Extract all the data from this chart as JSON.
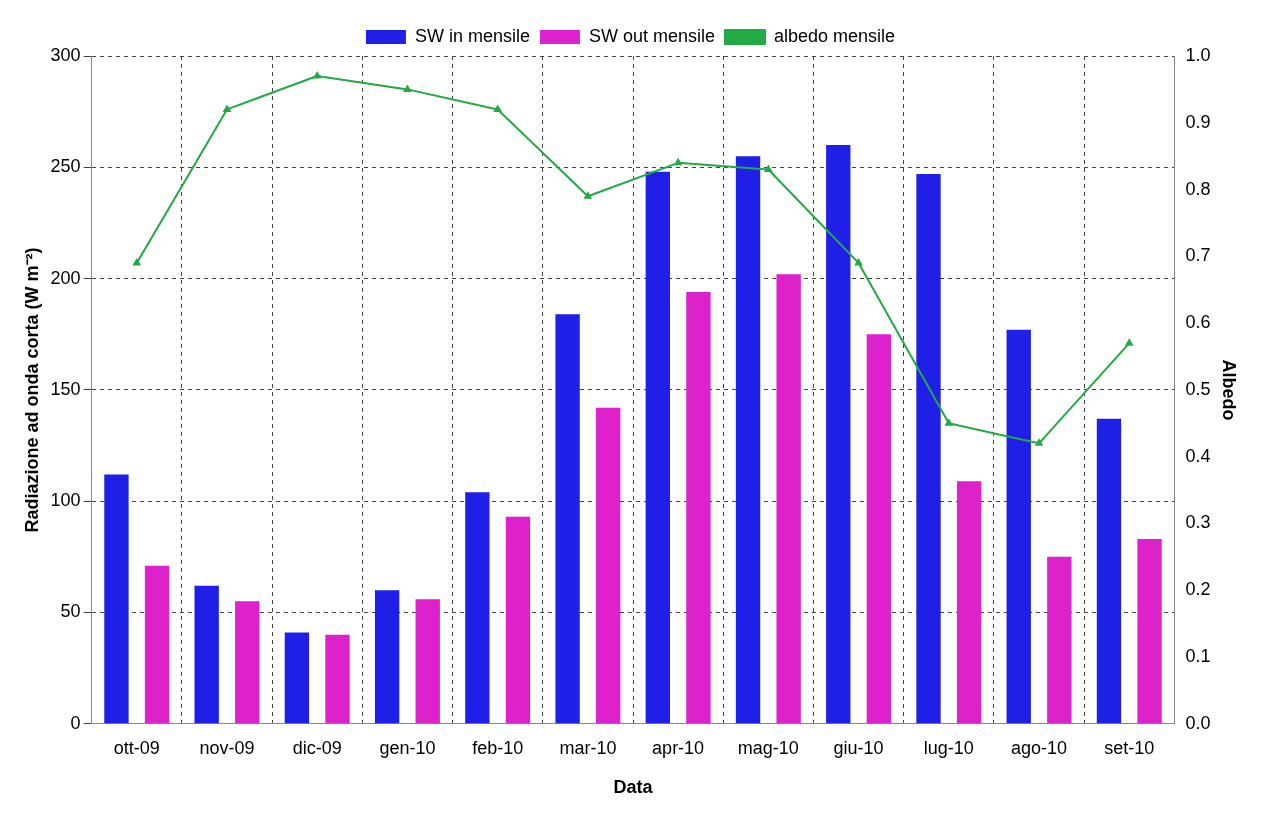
{
  "chart_data": {
    "type": "bar",
    "xlabel": "Data",
    "ylabel": "Radiazione ad onda corta (W m⁻²)",
    "y2label": "Albedo",
    "categories": [
      "ott-09",
      "nov-09",
      "dic-09",
      "gen-10",
      "feb-10",
      "mar-10",
      "apr-10",
      "mag-10",
      "giu-10",
      "lug-10",
      "ago-10",
      "set-10"
    ],
    "series": [
      {
        "name": "SW in mensile",
        "color": "#1f1fe8",
        "values": [
          112,
          62,
          41,
          60,
          104,
          184,
          248,
          255,
          260,
          247,
          177,
          137
        ]
      },
      {
        "name": "SW out mensile",
        "color": "#dd22cc",
        "values": [
          71,
          55,
          40,
          56,
          93,
          142,
          194,
          202,
          175,
          109,
          75,
          83
        ]
      },
      {
        "name": "albedo mensile",
        "type": "line",
        "axis": "y2",
        "color": "#22aa44",
        "marker": "triangle",
        "values": [
          0.69,
          0.92,
          0.97,
          0.95,
          0.92,
          0.79,
          0.84,
          0.83,
          0.69,
          0.45,
          0.42,
          0.57
        ]
      }
    ],
    "ylim": [
      0,
      300
    ],
    "yticks": [
      0,
      50,
      100,
      150,
      200,
      250,
      300
    ],
    "y2lim": [
      0,
      1
    ],
    "y2ticks": [
      {
        "value": 0,
        "label": "0.0"
      },
      {
        "value": 0.1,
        "label": "0.1"
      },
      {
        "value": 0.2,
        "label": "0.2"
      },
      {
        "value": 0.3,
        "label": "0.3"
      },
      {
        "value": 0.4,
        "label": "0.4"
      },
      {
        "value": 0.5,
        "label": "0.5"
      },
      {
        "value": 0.6,
        "label": "0.6"
      },
      {
        "value": 0.7,
        "label": "0.7"
      },
      {
        "value": 0.8,
        "label": "0.8"
      },
      {
        "value": 0.9,
        "label": "0.9"
      },
      {
        "value": 1,
        "label": "1.0"
      }
    ],
    "grid": true,
    "legend": "top"
  }
}
